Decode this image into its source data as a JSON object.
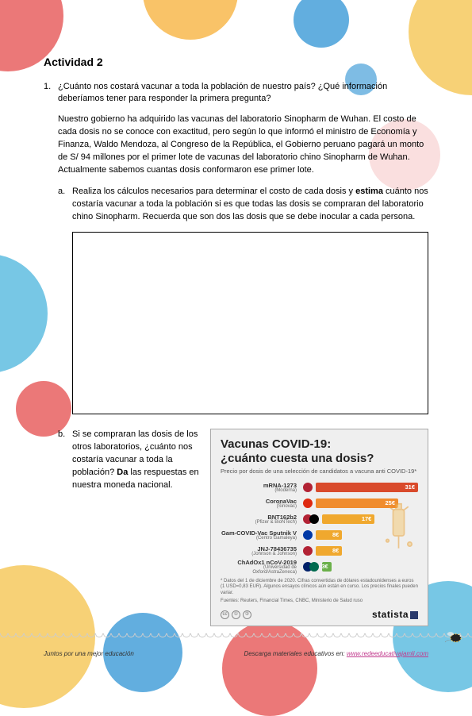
{
  "activity": {
    "title": "Actividad 2",
    "q_number": "1.",
    "q_text": "¿Cuánto nos costará vacunar a toda la población de nuestro país? ¿Qué información deberíamos tener para responder la primera pregunta?",
    "intro_para": "Nuestro gobierno ha adquirido las vacunas del laboratorio Sinopharm de Wuhan. El costo de cada dosis no se conoce con exactitud, pero según lo que informó el ministro de Economía y Finanza, Waldo Mendoza, al Congreso de la República, el Gobierno peruano pagará un monto de S/ 94 millones por el primer lote de vacunas del laboratorio chino Sinopharm de Wuhan. Actualmente sabemos cuantas dosis conformaron ese primer lote.",
    "sub_a_letter": "a.",
    "sub_a_prefix": "Realiza los cálculos necesarios para determinar el costo de cada dosis y ",
    "sub_a_bold": "estima",
    "sub_a_suffix": " cuánto nos costaría vacunar a toda la población si es que todas las dosis se compraran del laboratorio chino Sinopharm. Recuerda que son dos las dosis que se debe inocular a cada persona.",
    "sub_b_letter": "b.",
    "sub_b_prefix": "Si se compraran las dosis de los otros laboratorios, ¿cuánto nos costaría vacunar a toda la población? ",
    "sub_b_bold": "Da",
    "sub_b_suffix": " las respuestas en nuestra moneda nacional."
  },
  "chart": {
    "title_line1": "Vacunas COVID-19:",
    "title_line2": "¿cuánto cuesta una dosis?",
    "subtitle": "Precio por dosis de una selección de candidatos a vacuna anti COVID-19*",
    "max_value": 31,
    "bars": [
      {
        "name": "mRNA-1273",
        "maker": "(Moderna)",
        "value": 31,
        "label": "31€",
        "color": "#d94a2b",
        "flag": "#b22234"
      },
      {
        "name": "CoronaVac",
        "maker": "(Sinovac)",
        "value": 25,
        "label": "25€",
        "color": "#f08c2e",
        "flag": "#de2910"
      },
      {
        "name": "BNT162b2",
        "maker": "(Pfizer & BioNTech)",
        "value": 17,
        "label": "17€",
        "color": "#f0a82e",
        "flag_dual": [
          "#b22234",
          "#000000"
        ]
      },
      {
        "name": "Gam-COVID-Vac Sputnik V",
        "maker": "(Centro Gamaleya)",
        "value": 8,
        "label": "8€",
        "color": "#f0a82e",
        "flag": "#0039a6"
      },
      {
        "name": "JNJ-78436735",
        "maker": "(Johnson & Johnson)",
        "value": 8,
        "label": "8€",
        "color": "#f0a82e",
        "flag": "#b22234"
      },
      {
        "name": "ChAdOx1 nCoV-2019",
        "maker": "(Universidad de Oxford/AstraZeneca)",
        "value": 3,
        "label": "3€",
        "color": "#6bb04a",
        "flag_dual": [
          "#012169",
          "#006a4e"
        ]
      }
    ],
    "footnote": "* Datos del 1 de diciembre de 2020. Cifras convertidas de dólares estadounidenses a euros (1 USD=0,83 EUR). Algunos ensayos clínicos aún están en curso. Los precios finales pueden variar.",
    "sources": "Fuentes: Reuters, Financial Times, CNBC, Ministerio de Salud ruso",
    "cc_labels": [
      "cc",
      "①",
      "②"
    ],
    "brand": "statista"
  },
  "footer": {
    "left": "Juntos por una mejor educación",
    "right_prefix": "Descarga materiales educativos en: ",
    "right_link": "www.redeeducativajamli.com"
  }
}
